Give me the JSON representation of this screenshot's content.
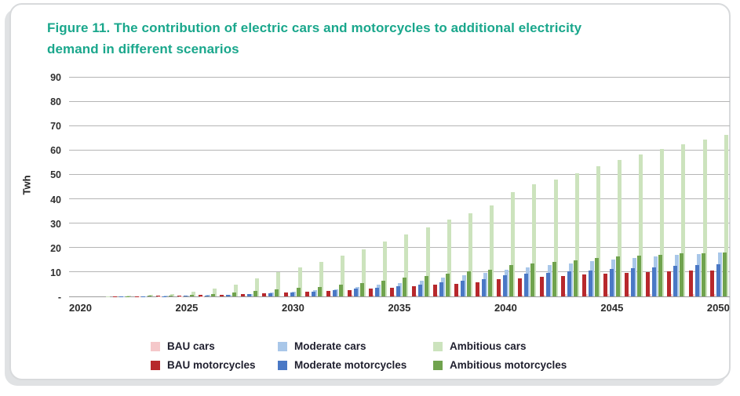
{
  "figure": {
    "title_line1": "Figure 11. The contribution of electric cars and motorcycles to additional electricity",
    "title_line2": "demand in different scenarios",
    "title_color": "#1aa78c"
  },
  "chart_data": {
    "type": "bar",
    "title": "Figure 11. The contribution of electric cars and motorcycles to additional electricity demand in different scenarios",
    "xlabel": "",
    "ylabel": "Twh",
    "ylim": [
      0,
      90
    ],
    "ytick_labels_top_to_bottom": [
      "90",
      "80",
      "70",
      "60",
      "50",
      "40",
      "30",
      "20",
      "10",
      "-"
    ],
    "xtick_labels_shown": [
      "2020",
      "2025",
      "2030",
      "2035",
      "2040",
      "2045",
      "2050"
    ],
    "xtick_every": 5,
    "grid": true,
    "legend_position": "bottom",
    "x": [
      2020,
      2021,
      2022,
      2023,
      2024,
      2025,
      2026,
      2027,
      2028,
      2029,
      2030,
      2031,
      2032,
      2033,
      2034,
      2035,
      2036,
      2037,
      2038,
      2039,
      2040,
      2041,
      2042,
      2043,
      2044,
      2045,
      2046,
      2047,
      2048,
      2049,
      2050
    ],
    "series": [
      {
        "name": "BAU cars",
        "color": "#f5c8ca",
        "values": [
          0,
          0,
          0,
          0.05,
          0.1,
          0.1,
          0.15,
          0.2,
          0.25,
          0.3,
          0.35,
          0.4,
          0.45,
          0.5,
          0.5,
          0.55,
          0.6,
          0.65,
          0.7,
          0.7,
          0.75,
          0.8,
          0.8,
          0.85,
          0.9,
          0.9,
          0.95,
          1.0,
          1.0,
          1.0,
          1.0
        ]
      },
      {
        "name": "Moderate cars",
        "color": "#a9c7e9",
        "values": [
          0,
          0,
          0.05,
          0.1,
          0.2,
          0.3,
          0.5,
          0.8,
          1.1,
          1.5,
          2.0,
          2.5,
          3.0,
          3.8,
          4.8,
          5.6,
          6.6,
          7.6,
          8.7,
          9.7,
          11.0,
          11.9,
          12.8,
          13.7,
          14.5,
          15.2,
          15.9,
          16.5,
          17.0,
          17.5,
          18.0
        ]
      },
      {
        "name": "Ambitious cars",
        "color": "#cce3bd",
        "values": [
          0,
          0.05,
          0.2,
          0.5,
          1.0,
          1.9,
          3.3,
          5.0,
          7.3,
          9.9,
          11.8,
          14.1,
          16.7,
          19.4,
          22.7,
          25.6,
          28.5,
          31.5,
          34.3,
          37.5,
          43.0,
          46.0,
          48.0,
          50.5,
          53.5,
          56.0,
          58.5,
          60.5,
          62.5,
          64.5,
          66.5
        ]
      },
      {
        "name": "BAU motorcycles",
        "color": "#b7282c",
        "values": [
          0,
          0,
          0.05,
          0.1,
          0.2,
          0.35,
          0.5,
          0.7,
          1.0,
          1.3,
          1.7,
          2.0,
          2.3,
          2.7,
          3.1,
          3.6,
          4.1,
          4.7,
          5.2,
          5.8,
          7.0,
          7.5,
          8.0,
          8.5,
          9.0,
          9.4,
          9.7,
          10.0,
          10.3,
          10.5,
          10.7
        ]
      },
      {
        "name": "Moderate motorcycles",
        "color": "#4a78c5",
        "values": [
          0,
          0,
          0.05,
          0.1,
          0.15,
          0.25,
          0.4,
          0.6,
          0.9,
          1.2,
          1.6,
          2.1,
          2.6,
          3.1,
          3.7,
          4.3,
          5.0,
          5.7,
          6.4,
          7.1,
          8.7,
          9.2,
          9.8,
          10.3,
          10.8,
          11.3,
          11.7,
          12.1,
          12.5,
          12.8,
          13.1
        ]
      },
      {
        "name": "Ambitious motorcycles",
        "color": "#70a34e",
        "values": [
          0,
          0.02,
          0.1,
          0.25,
          0.45,
          0.7,
          1.1,
          1.6,
          2.2,
          2.9,
          3.6,
          4.0,
          4.7,
          5.4,
          6.4,
          7.7,
          8.5,
          9.4,
          10.2,
          11.0,
          12.8,
          13.6,
          14.3,
          15.0,
          15.7,
          16.3,
          16.8,
          17.2,
          17.6,
          17.9,
          18.1
        ]
      }
    ]
  },
  "legend": {
    "items": [
      {
        "label": "BAU cars",
        "color": "#f5c8ca"
      },
      {
        "label": "Moderate cars",
        "color": "#a9c7e9"
      },
      {
        "label": "Ambitious cars",
        "color": "#cce3bd"
      },
      {
        "label": "BAU motorcycles",
        "color": "#b7282c"
      },
      {
        "label": "Moderate motorcycles",
        "color": "#4a78c5"
      },
      {
        "label": "Ambitious motorcycles",
        "color": "#70a34e"
      }
    ]
  }
}
